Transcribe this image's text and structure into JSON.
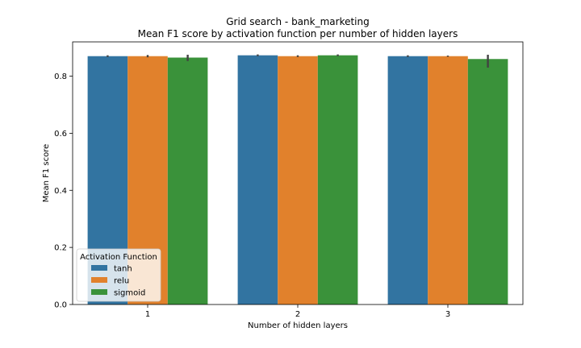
{
  "chart_data": {
    "type": "bar",
    "title": "Grid search - bank_marketing",
    "subtitle": "Mean F1 score by activation function per number of hidden layers",
    "xlabel": "Number of hidden layers",
    "ylabel": "Mean F1 score",
    "categories": [
      "1",
      "2",
      "3"
    ],
    "ylim": [
      0,
      0.92
    ],
    "yticks": [
      "0.0",
      "0.2",
      "0.4",
      "0.6",
      "0.8"
    ],
    "grid": false,
    "legend": {
      "title": "Activation Function",
      "position": "lower-left"
    },
    "series": [
      {
        "name": "tanh",
        "color": "#3274a1",
        "values": [
          0.87,
          0.873,
          0.87
        ],
        "err_low": [
          0.867,
          0.87,
          0.867
        ],
        "err_high": [
          0.873,
          0.876,
          0.873
        ]
      },
      {
        "name": "relu",
        "color": "#e1812c",
        "values": [
          0.87,
          0.87,
          0.87
        ],
        "err_low": [
          0.866,
          0.867,
          0.868
        ],
        "err_high": [
          0.874,
          0.873,
          0.872
        ]
      },
      {
        "name": "sigmoid",
        "color": "#3a923a",
        "values": [
          0.865,
          0.873,
          0.86
        ],
        "err_low": [
          0.853,
          0.87,
          0.83
        ],
        "err_high": [
          0.875,
          0.876,
          0.875
        ]
      }
    ]
  }
}
